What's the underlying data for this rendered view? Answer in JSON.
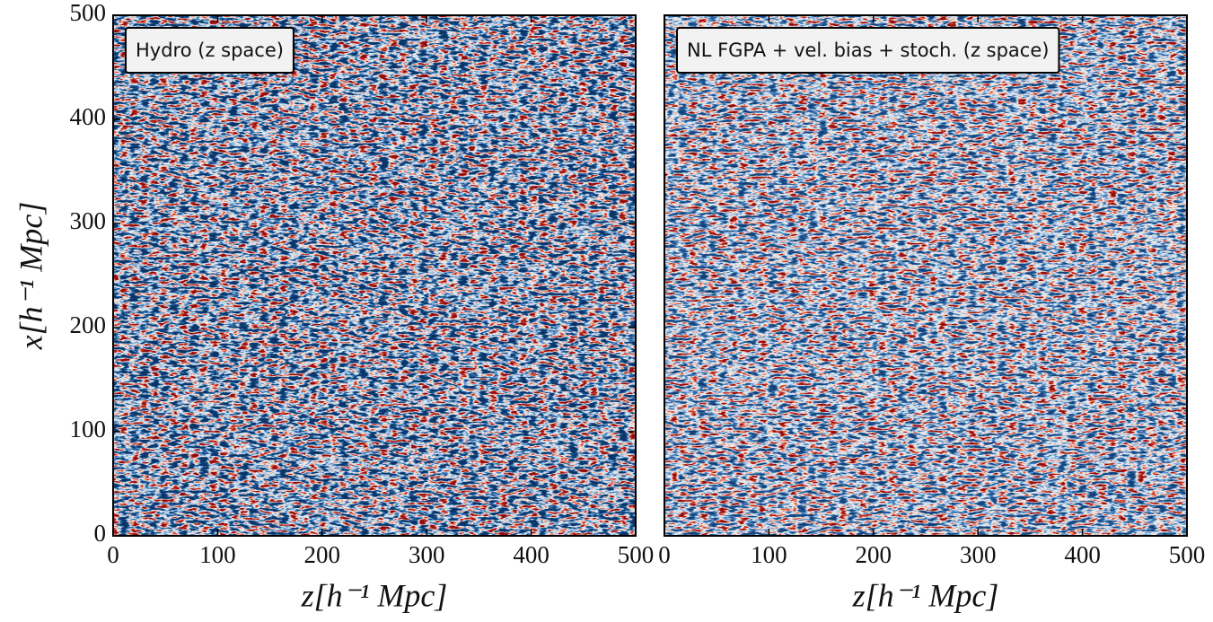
{
  "chart_data": [
    {
      "type": "heatmap",
      "title": "Hydro (z space)",
      "xlabel": "z[h⁻¹ Mpc]",
      "ylabel": "x[h⁻¹ Mpc]",
      "xlim": [
        0,
        500
      ],
      "ylim": [
        0,
        500
      ],
      "xticks": [
        0,
        100,
        200,
        300,
        400,
        500
      ],
      "yticks": [
        0,
        100,
        200,
        300,
        400,
        500
      ]
    },
    {
      "type": "heatmap",
      "title": "NL FGPA + vel. bias + stoch. (z space)",
      "xlabel": "z[h⁻¹ Mpc]",
      "xlim": [
        0,
        500
      ],
      "ylim": [
        0,
        500
      ],
      "xticks": [
        0,
        100,
        200,
        300,
        400,
        500
      ]
    }
  ]
}
